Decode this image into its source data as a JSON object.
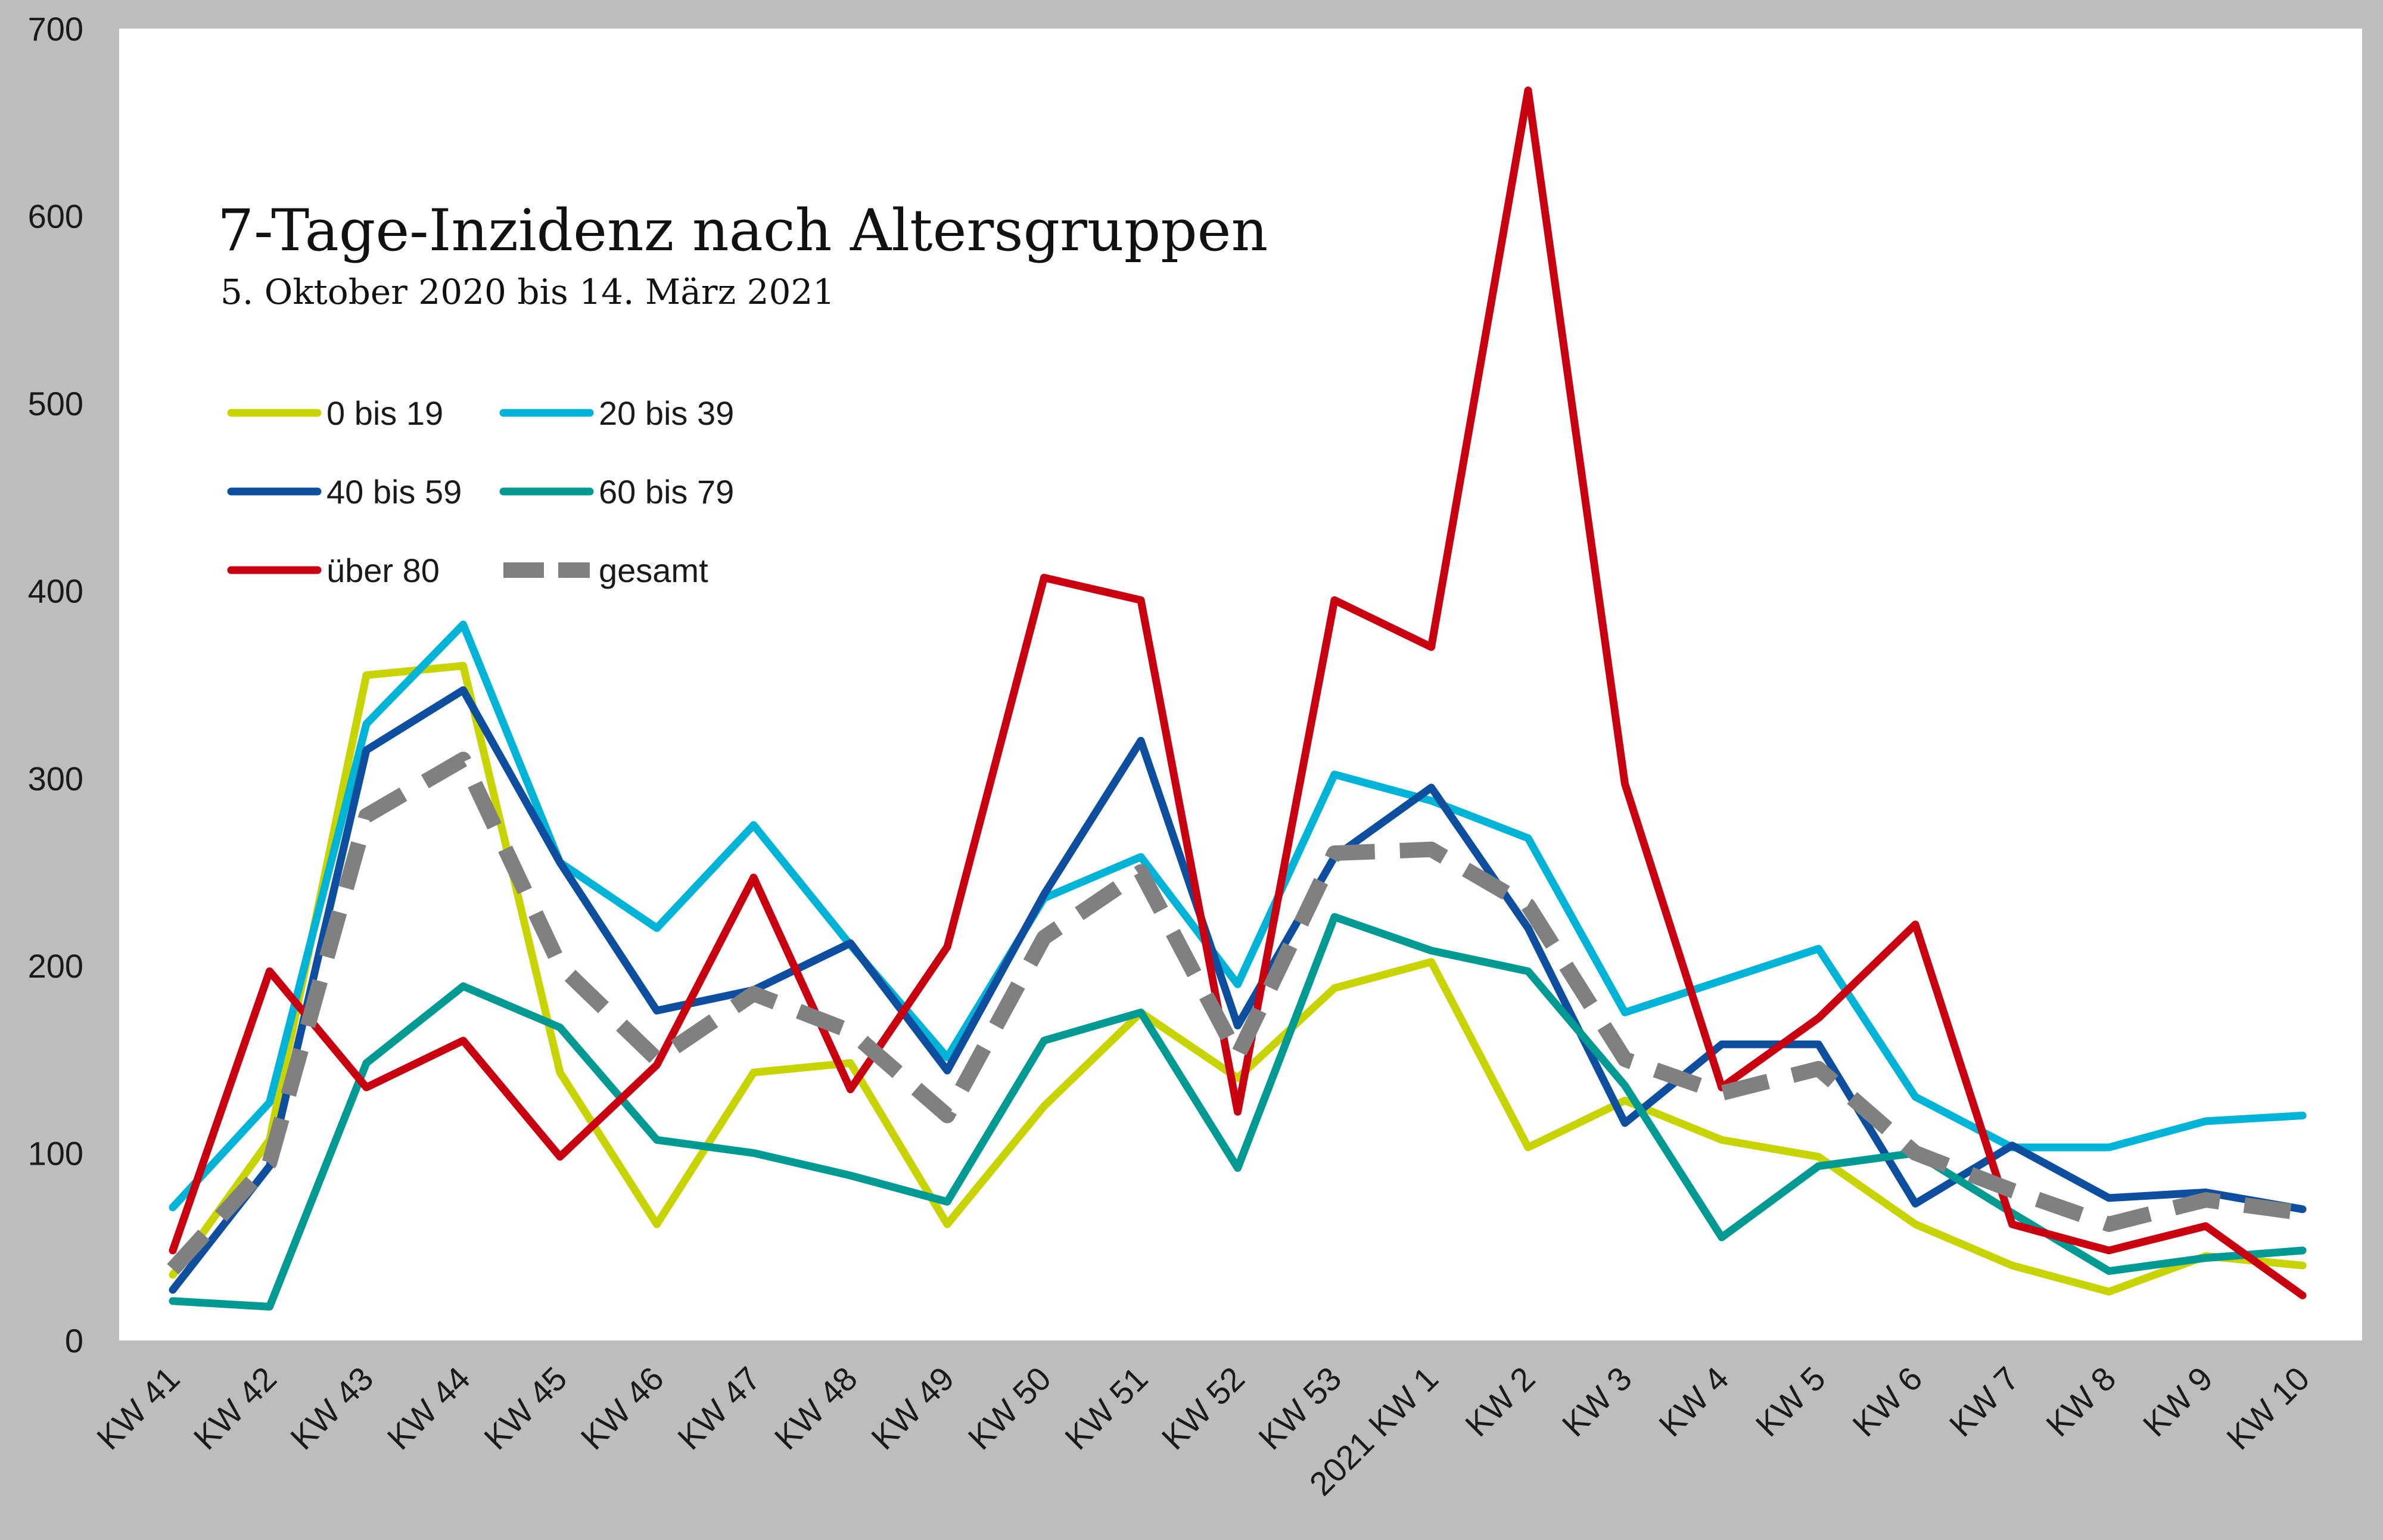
{
  "chart_data": {
    "type": "line",
    "title": "7-Tage-Inzidenz nach Altersgruppen",
    "subtitle": "5. Oktober 2020 bis 14. März 2021",
    "categories": [
      "KW 41",
      "KW 42",
      "KW 43",
      "KW 44",
      "KW 45",
      "KW 46",
      "KW 47",
      "KW 48",
      "KW 49",
      "KW 50",
      "KW 51",
      "KW 52",
      "KW 53",
      "2021 KW 1",
      "KW 2",
      "KW 3",
      "KW 4",
      "KW 5",
      "KW 6",
      "KW 7",
      "KW 8",
      "KW 9",
      "KW 10"
    ],
    "ylim": [
      0,
      700
    ],
    "yticks": [
      0,
      100,
      200,
      300,
      400,
      500,
      600,
      700
    ],
    "grid": false,
    "legend_position": "top-left",
    "series": [
      {
        "name": "0 bis 19",
        "color": "#c8d400",
        "dashed": false,
        "values": [
          35,
          107,
          355,
          360,
          143,
          62,
          143,
          148,
          62,
          125,
          175,
          140,
          188,
          202,
          103,
          128,
          107,
          98,
          62,
          40,
          26,
          45,
          40
        ]
      },
      {
        "name": "20 bis 39",
        "color": "#00b4d8",
        "dashed": false,
        "values": [
          71,
          127,
          329,
          382,
          255,
          220,
          275,
          211,
          151,
          236,
          258,
          190,
          302,
          288,
          268,
          175,
          192,
          209,
          130,
          103,
          103,
          117,
          120
        ]
      },
      {
        "name": "40 bis 59",
        "color": "#0d4f9e",
        "dashed": false,
        "values": [
          27,
          93,
          315,
          347,
          255,
          176,
          187,
          212,
          144,
          238,
          320,
          168,
          258,
          295,
          220,
          116,
          158,
          158,
          73,
          104,
          76,
          79,
          70
        ]
      },
      {
        "name": "60 bis 79",
        "color": "#009a93",
        "dashed": false,
        "values": [
          21,
          18,
          148,
          189,
          167,
          107,
          100,
          88,
          74,
          160,
          175,
          92,
          226,
          208,
          197,
          136,
          55,
          93,
          100,
          68,
          37,
          44,
          48
        ]
      },
      {
        "name": "über 80",
        "color": "#c8000f",
        "dashed": false,
        "values": [
          48,
          197,
          135,
          160,
          98,
          147,
          247,
          134,
          210,
          407,
          395,
          122,
          395,
          370,
          667,
          297,
          135,
          172,
          222,
          62,
          48,
          61,
          24
        ]
      },
      {
        "name": "gesamt",
        "color": "#808080",
        "dashed": true,
        "values": [
          38,
          95,
          280,
          310,
          200,
          150,
          185,
          165,
          120,
          215,
          250,
          152,
          260,
          262,
          232,
          150,
          132,
          145,
          100,
          80,
          62,
          75,
          68
        ]
      }
    ]
  }
}
